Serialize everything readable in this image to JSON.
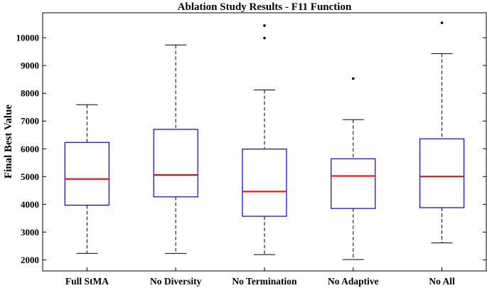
{
  "chart_data": {
    "type": "box",
    "title": "Ablation Study Results - F11 Function",
    "xlabel": "",
    "ylabel": "Final Best Value",
    "ylim": [
      1600,
      10900
    ],
    "yticks": [
      2000,
      3000,
      4000,
      5000,
      6000,
      7000,
      8000,
      9000,
      10000
    ],
    "grid": false,
    "colors": {
      "box": "#0000ff",
      "median": "#ff0000",
      "whisker": "#000000",
      "outlier": "#000000"
    },
    "categories": [
      "Full StMA",
      "No Diversity",
      "No Termination",
      "No Adaptive",
      "No All"
    ],
    "boxes": [
      {
        "name": "Full StMA",
        "min": 2230,
        "q1": 3970,
        "median": 4910,
        "q3": 6230,
        "max": 7590,
        "outliers": []
      },
      {
        "name": "No Diversity",
        "min": 2230,
        "q1": 4270,
        "median": 5060,
        "q3": 6700,
        "max": 9740,
        "outliers": []
      },
      {
        "name": "No Termination",
        "min": 2190,
        "q1": 3570,
        "median": 4460,
        "q3": 5990,
        "max": 8120,
        "outliers": [
          9990,
          10440
        ]
      },
      {
        "name": "No Adaptive",
        "min": 2010,
        "q1": 3850,
        "median": 5020,
        "q3": 5640,
        "max": 7050,
        "outliers": [
          8530
        ]
      },
      {
        "name": "No All",
        "min": 2610,
        "q1": 3880,
        "median": 5000,
        "q3": 6360,
        "max": 9430,
        "outliers": [
          10540
        ]
      }
    ]
  }
}
